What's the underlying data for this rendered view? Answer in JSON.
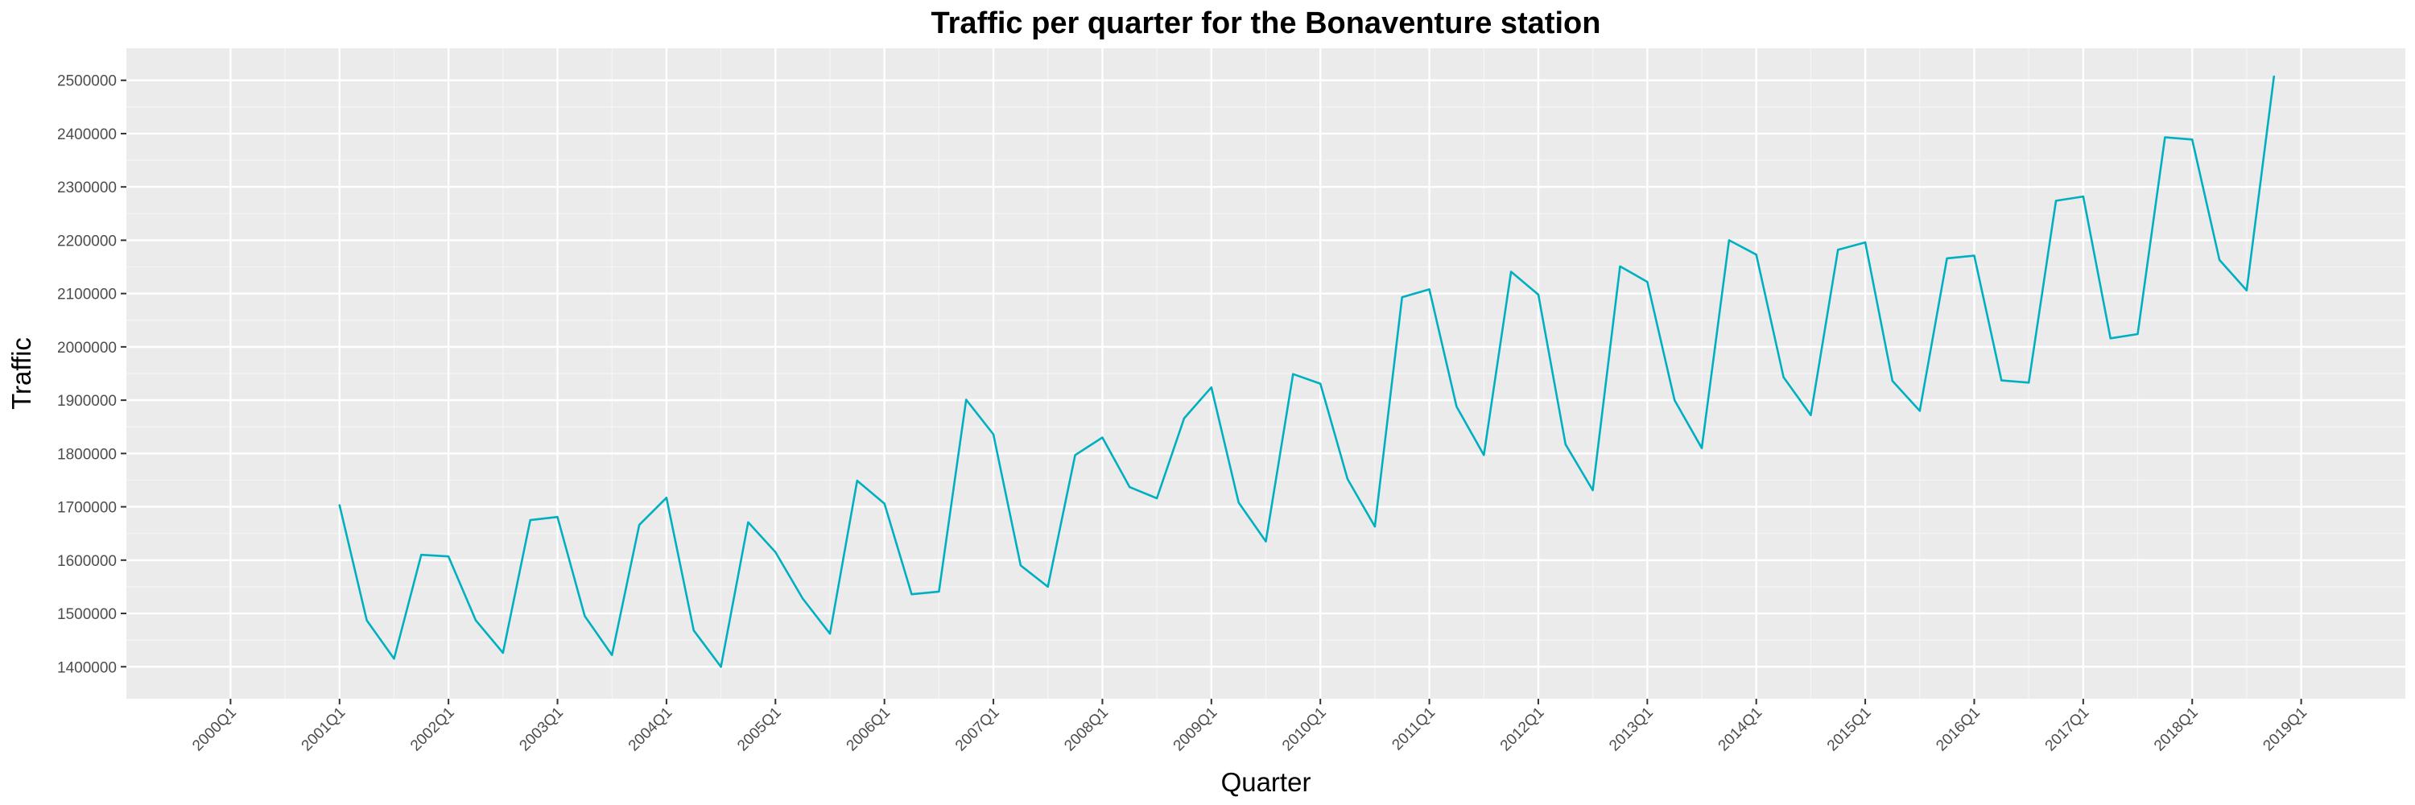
{
  "chart_data": {
    "type": "line",
    "title": "Traffic per quarter for the Bonaventure station",
    "xlabel": "Quarter",
    "ylabel": "Traffic",
    "grid": true,
    "ylim": [
      1340000,
      2560000
    ],
    "y_ticks": [
      1400000,
      1500000,
      1600000,
      1700000,
      1800000,
      1900000,
      2000000,
      2100000,
      2200000,
      2300000,
      2400000,
      2500000
    ],
    "x_ticks": [
      "2000Q1",
      "2001Q1",
      "2002Q1",
      "2003Q1",
      "2004Q1",
      "2005Q1",
      "2006Q1",
      "2007Q1",
      "2008Q1",
      "2009Q1",
      "2010Q1",
      "2011Q1",
      "2012Q1",
      "2013Q1",
      "2014Q1",
      "2015Q1",
      "2016Q1",
      "2017Q1",
      "2018Q1",
      "2019Q1"
    ],
    "series": [
      {
        "color": "#00B0C0",
        "x": [
          "2001Q1",
          "2001Q2",
          "2001Q3",
          "2001Q4",
          "2002Q1",
          "2002Q2",
          "2002Q3",
          "2002Q4",
          "2003Q1",
          "2003Q2",
          "2003Q3",
          "2003Q4",
          "2004Q1",
          "2004Q2",
          "2004Q3",
          "2004Q4",
          "2005Q1",
          "2005Q2",
          "2005Q3",
          "2005Q4",
          "2006Q1",
          "2006Q2",
          "2006Q3",
          "2006Q4",
          "2007Q1",
          "2007Q2",
          "2007Q3",
          "2007Q4",
          "2008Q1",
          "2008Q2",
          "2008Q3",
          "2008Q4",
          "2009Q1",
          "2009Q2",
          "2009Q3",
          "2009Q4",
          "2010Q1",
          "2010Q2",
          "2010Q3",
          "2010Q4",
          "2011Q1",
          "2011Q2",
          "2011Q3",
          "2011Q4",
          "2012Q1",
          "2012Q2",
          "2012Q3",
          "2012Q4",
          "2013Q1",
          "2013Q2",
          "2013Q3",
          "2013Q4",
          "2014Q1",
          "2014Q2",
          "2014Q3",
          "2014Q4",
          "2015Q1",
          "2015Q2",
          "2015Q3",
          "2015Q4",
          "2016Q1",
          "2016Q2",
          "2016Q3",
          "2016Q4",
          "2017Q1",
          "2017Q2",
          "2017Q3",
          "2017Q4",
          "2018Q1",
          "2018Q2",
          "2018Q3",
          "2018Q4"
        ],
        "values": [
          1703000,
          1487000,
          1415000,
          1610000,
          1607000,
          1487000,
          1426000,
          1675000,
          1681000,
          1495000,
          1422000,
          1666000,
          1717000,
          1468000,
          1400000,
          1671000,
          1615000,
          1528000,
          1462000,
          1749000,
          1706000,
          1536000,
          1541000,
          1901000,
          1836000,
          1590000,
          1550000,
          1797000,
          1830000,
          1737000,
          1716000,
          1866000,
          1924000,
          1708000,
          1635000,
          1949000,
          1931000,
          1752000,
          1663000,
          2093000,
          2108000,
          1888000,
          1797000,
          2141000,
          2098000,
          1817000,
          1731000,
          2151000,
          2122000,
          1900000,
          1810000,
          2200000,
          2173000,
          1943000,
          1872000,
          2182000,
          2196000,
          1936000,
          1880000,
          2166000,
          2171000,
          1937000,
          1933000,
          2274000,
          2282000,
          2016000,
          2024000,
          2393000,
          2389000,
          2163000,
          2106000,
          2507000
        ]
      }
    ]
  }
}
